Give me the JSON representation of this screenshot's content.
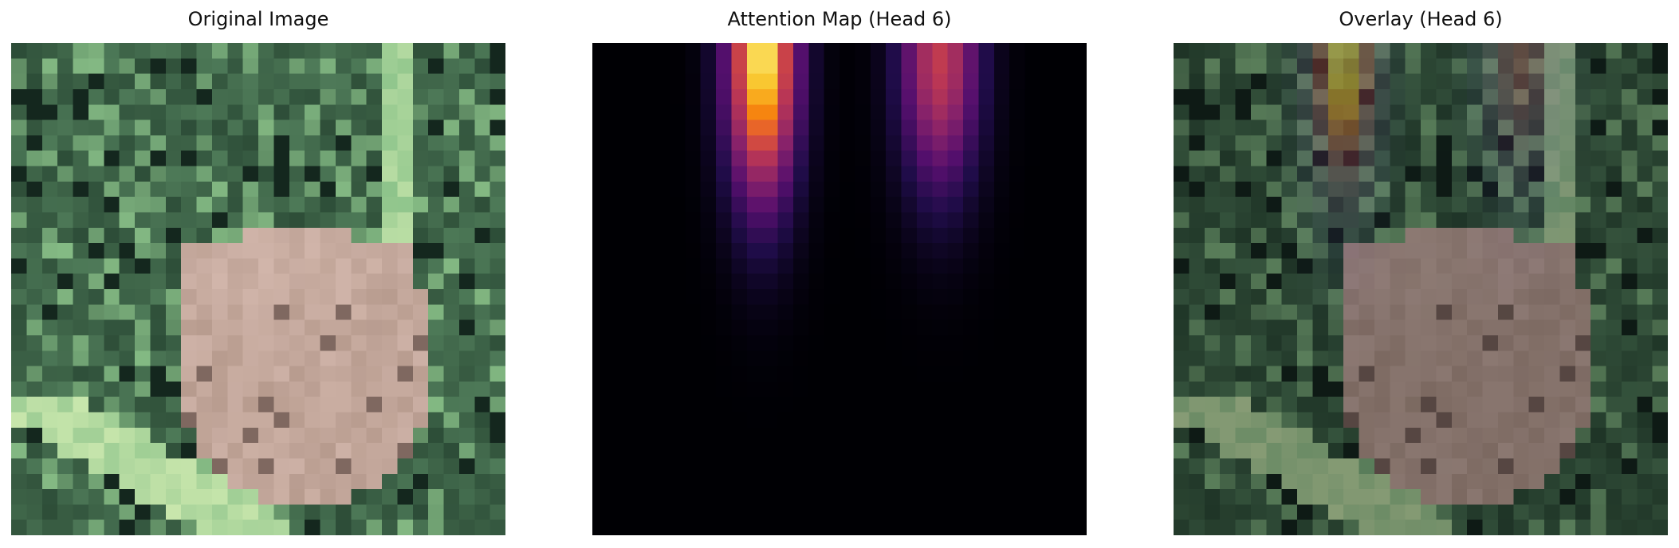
{
  "panels": [
    {
      "id": "original",
      "title": "Original Image"
    },
    {
      "id": "attention",
      "title": "Attention Map (Head 6)"
    },
    {
      "id": "overlay",
      "title": "Overlay (Head 6)"
    }
  ],
  "image": {
    "grid": 32,
    "subject": "frog-in-grass",
    "palette": {
      "grass_dark": "#1f3a2a",
      "grass_mid": "#4e7a58",
      "grass_light": "#8cc38a",
      "grass_bright": "#cfeab0",
      "frog": "#b79b8e",
      "frog_light": "#dcc0b6"
    }
  },
  "attention": {
    "colormap": "inferno",
    "grid": 32,
    "hotspots": [
      {
        "col": 10.5,
        "row": 0.5,
        "strength": 1.0,
        "spread_x": 1.6,
        "spread_y": 6.5
      },
      {
        "col": 22.0,
        "row": 0.5,
        "strength": 0.62,
        "spread_x": 1.8,
        "spread_y": 6.0
      }
    ],
    "overlay_alpha": 0.5
  }
}
